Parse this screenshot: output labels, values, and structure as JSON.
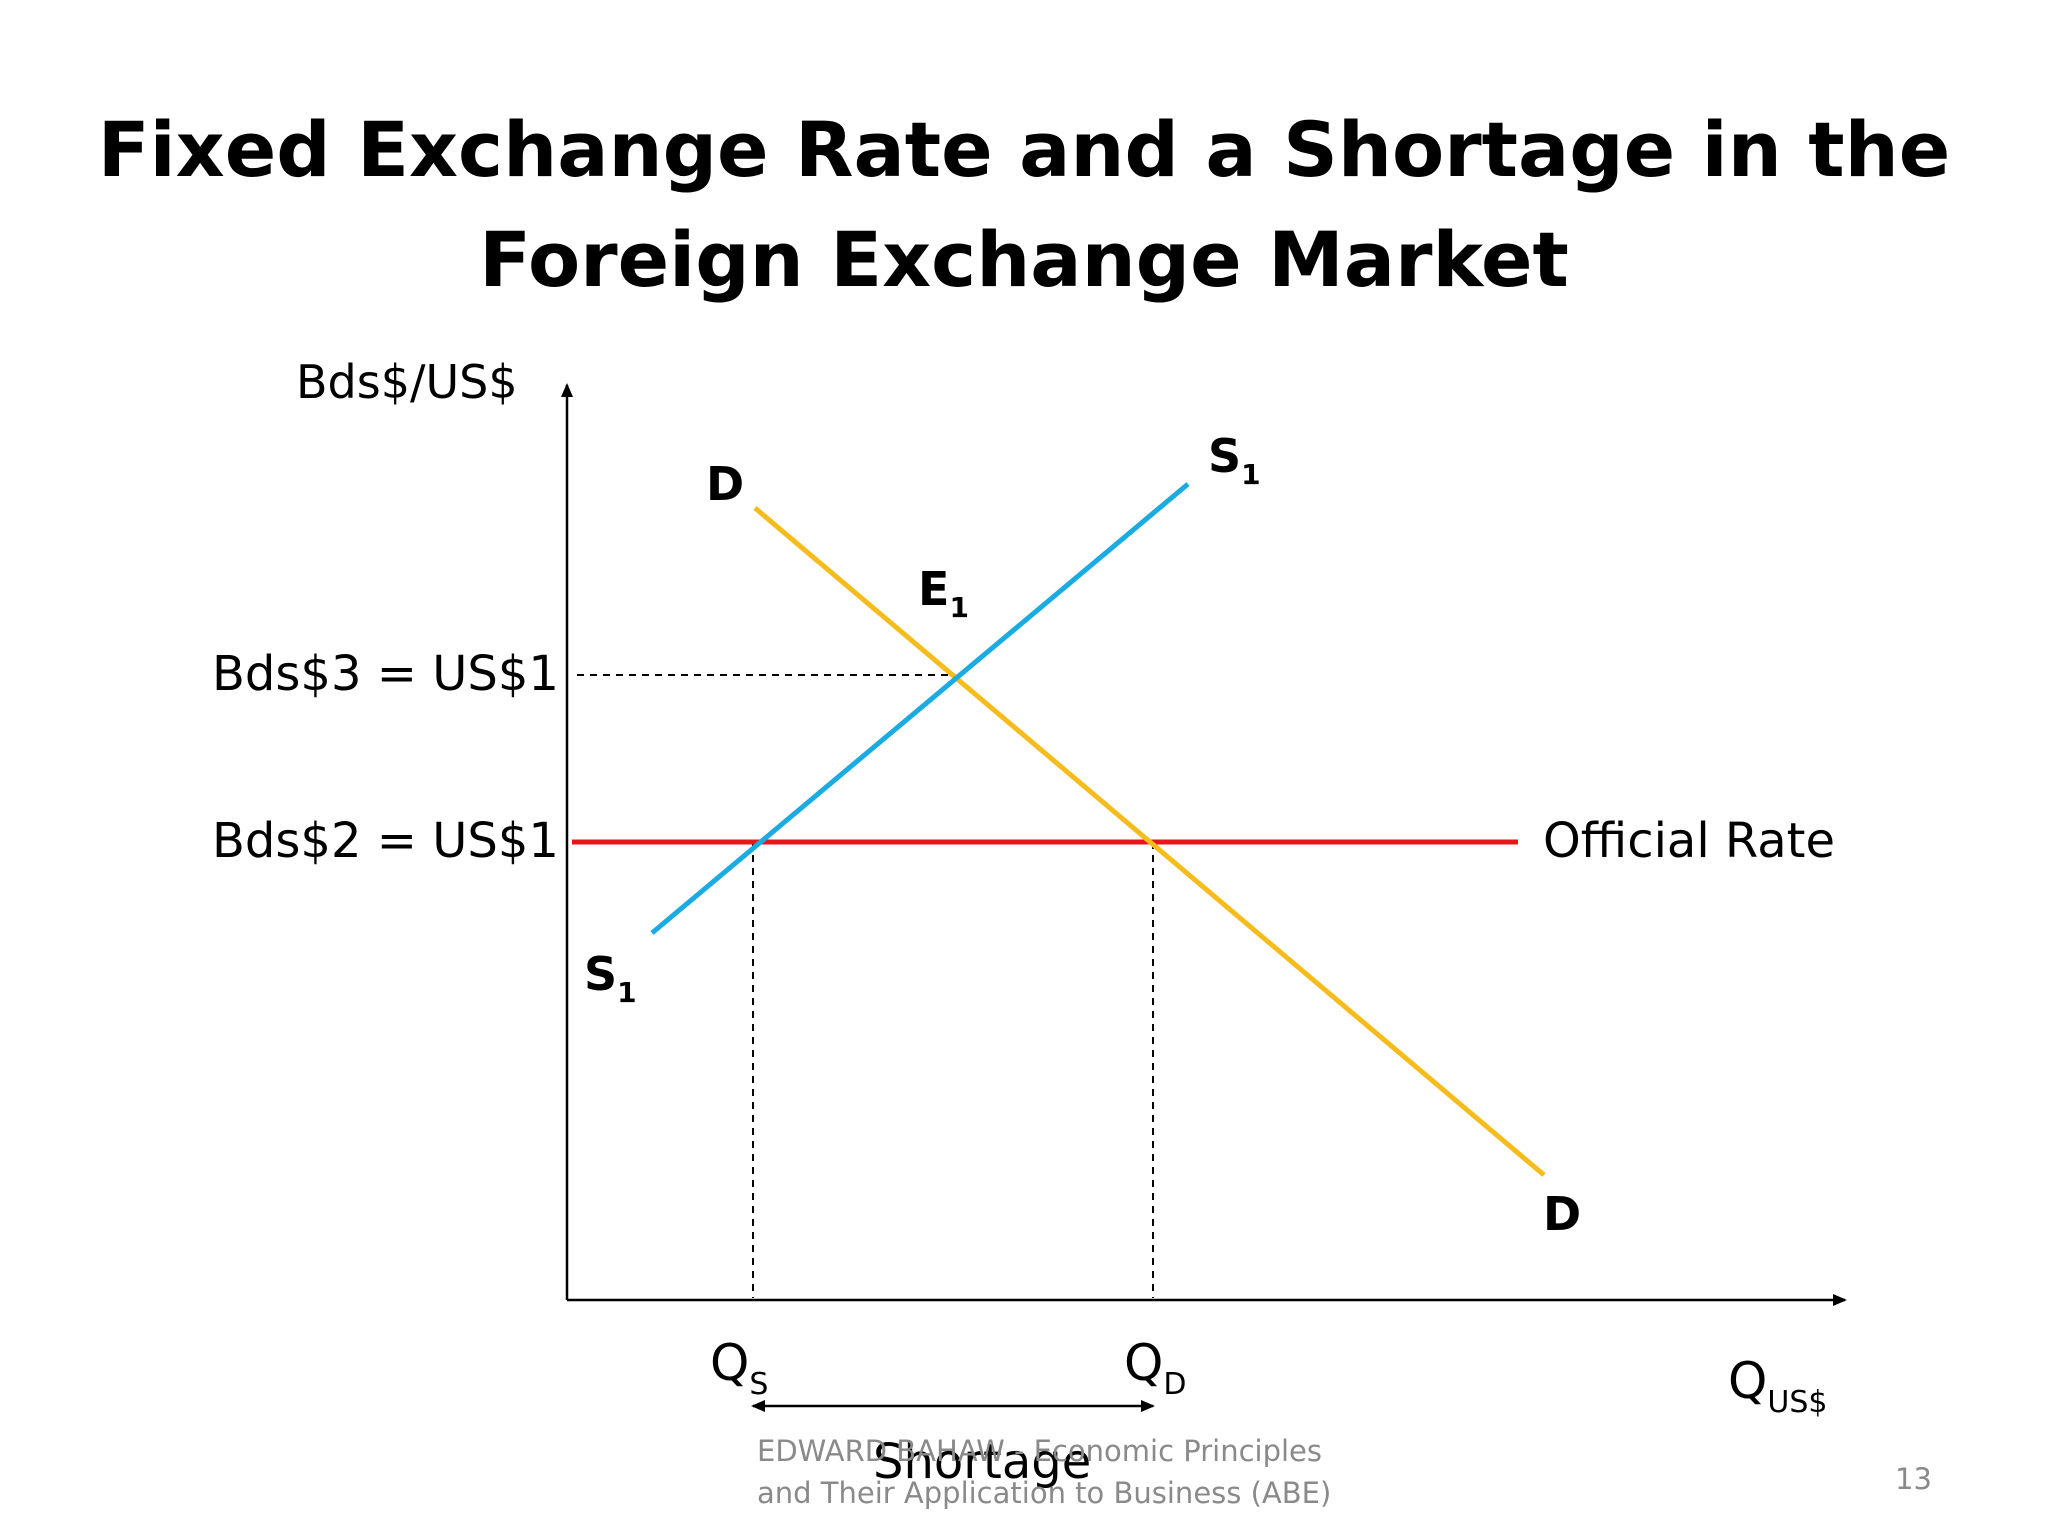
{
  "title": {
    "line1": "Fixed Exchange Rate and a Shortage in the",
    "line2": "Foreign Exchange Market"
  },
  "axes": {
    "y_label": "Bds$/US$",
    "x_label_main": "Q",
    "x_label_sub": "US$"
  },
  "price_labels": {
    "equilibrium": "Bds$3 = US$1",
    "official": "Bds$2 = US$1"
  },
  "curves": {
    "demand_label": "D",
    "supply_label_main": "S",
    "supply_label_sub": "1",
    "official_rate_label": "Official Rate",
    "equilibrium_label_main": "E",
    "equilibrium_label_sub": "1"
  },
  "quantities": {
    "qs_main": "Q",
    "qs_sub": "S",
    "qd_main": "Q",
    "qd_sub": "D"
  },
  "shortage_label": "Shortage",
  "colors": {
    "demand": "#F5BC1B",
    "supply": "#1AABE3",
    "official_rate": "#E8161B",
    "axis": "#000000",
    "footer": "#8a8a8a"
  },
  "footer": {
    "line1": "EDWARD BAHAW - Economic Principles",
    "line2": "and Their Application to Business (ABE)",
    "page_number": "13"
  }
}
